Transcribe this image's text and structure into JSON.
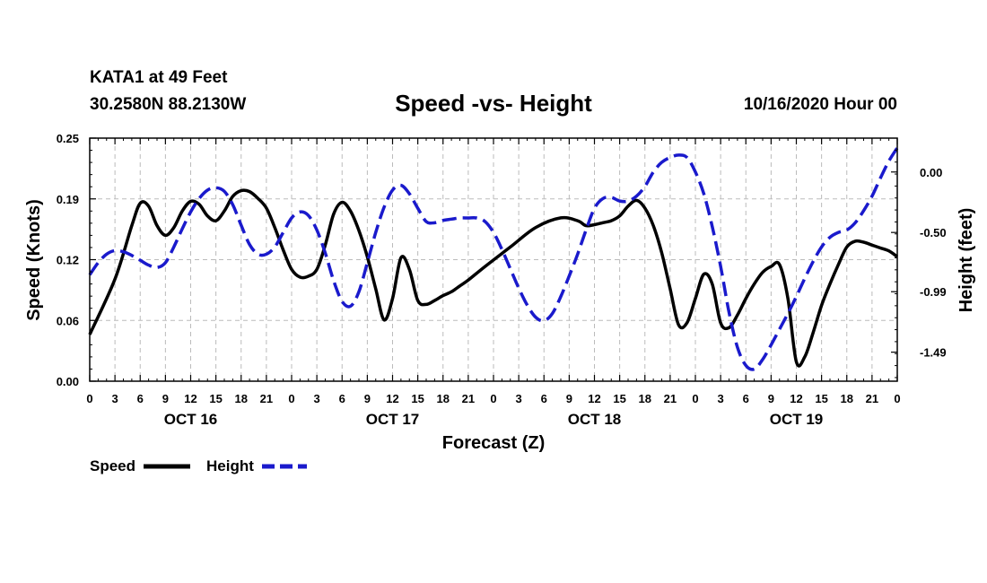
{
  "header": {
    "station": "KATA1 at 49 Feet",
    "coords": "30.2580N 88.2130W",
    "title": "Speed -vs- Height",
    "run_time": "10/16/2020 Hour 00"
  },
  "colors": {
    "speed": "#000000",
    "height": "#1a1acc",
    "grid": "#bbbbbb"
  },
  "chart_data": {
    "type": "line",
    "title": "Speed -vs- Height",
    "xlabel": "Forecast (Z)",
    "ylabel": "Speed (Knots)",
    "y2label": "Height (feet)",
    "xlim": [
      0,
      96
    ],
    "ylim": [
      0,
      0.25
    ],
    "y2lim": [
      -1.73,
      0.28
    ],
    "grid": true,
    "yticks": [
      "0.00",
      "0.06",
      "0.12",
      "0.19",
      "0.25"
    ],
    "y2ticks": [
      "0.00",
      "-0.50",
      "-0.99",
      "-1.49"
    ],
    "xtick_labels": [
      "0",
      "3",
      "6",
      "9",
      "12",
      "15",
      "18",
      "21",
      "0",
      "3",
      "6",
      "9",
      "12",
      "15",
      "18",
      "21",
      "0",
      "3",
      "6",
      "9",
      "12",
      "15",
      "18",
      "21",
      "0",
      "3",
      "6",
      "9",
      "12",
      "15",
      "18",
      "21",
      "0"
    ],
    "day_labels": [
      "OCT 16",
      "OCT 17",
      "OCT 18",
      "OCT 19"
    ],
    "legend": [
      "Speed",
      "Height"
    ],
    "series": [
      {
        "name": "Speed",
        "axis": "left",
        "style": "solid",
        "x": [
          0,
          3,
          5,
          6,
          7,
          8,
          9,
          10,
          11,
          12,
          13,
          14,
          15,
          16,
          17,
          18,
          19,
          20,
          21,
          22,
          23,
          24,
          25,
          26,
          27,
          28,
          29,
          30,
          31,
          32,
          33,
          34,
          35,
          36,
          37,
          38,
          39,
          40,
          41,
          42,
          43,
          44,
          45,
          47,
          50,
          53,
          56,
          58,
          59,
          60,
          61,
          62,
          63,
          64,
          65,
          66,
          67,
          68,
          69,
          70,
          71,
          72,
          73,
          74,
          75,
          76,
          77,
          78,
          79,
          80,
          81,
          82,
          83,
          84,
          85,
          86,
          87,
          88,
          89,
          90,
          91,
          92,
          93,
          94,
          95,
          96
        ],
        "y": [
          0.048,
          0.105,
          0.16,
          0.183,
          0.18,
          0.16,
          0.15,
          0.158,
          0.175,
          0.185,
          0.182,
          0.17,
          0.165,
          0.175,
          0.19,
          0.196,
          0.195,
          0.188,
          0.178,
          0.158,
          0.135,
          0.115,
          0.107,
          0.108,
          0.115,
          0.14,
          0.172,
          0.184,
          0.175,
          0.155,
          0.128,
          0.095,
          0.063,
          0.085,
          0.127,
          0.115,
          0.083,
          0.079,
          0.083,
          0.088,
          0.092,
          0.098,
          0.104,
          0.118,
          0.138,
          0.158,
          0.168,
          0.165,
          0.16,
          0.161,
          0.163,
          0.165,
          0.17,
          0.18,
          0.186,
          0.178,
          0.16,
          0.132,
          0.095,
          0.058,
          0.06,
          0.085,
          0.11,
          0.1,
          0.06,
          0.055,
          0.068,
          0.085,
          0.1,
          0.112,
          0.118,
          0.12,
          0.085,
          0.02,
          0.025,
          0.05,
          0.078,
          0.1,
          0.12,
          0.138,
          0.144,
          0.143,
          0.14,
          0.137,
          0.134,
          0.128
        ]
      },
      {
        "name": "Height",
        "axis": "right",
        "style": "dashed",
        "x": [
          0,
          1,
          2,
          3,
          4,
          5,
          6,
          7,
          8,
          9,
          10,
          11,
          12,
          13,
          14,
          15,
          16,
          17,
          18,
          19,
          20,
          21,
          22,
          23,
          24,
          25,
          26,
          27,
          28,
          29,
          30,
          31,
          32,
          33,
          34,
          35,
          36,
          37,
          38,
          39,
          40,
          41,
          42,
          43,
          44,
          45,
          46,
          47,
          48,
          49,
          50,
          51,
          52,
          53,
          54,
          55,
          56,
          57,
          58,
          59,
          60,
          61,
          62,
          63,
          64,
          65,
          66,
          67,
          68,
          69,
          70,
          71,
          72,
          73,
          74,
          75,
          76,
          77,
          78,
          79,
          80,
          81,
          82,
          83,
          84,
          85,
          86,
          87,
          88,
          89,
          90,
          91,
          92,
          93,
          94,
          95,
          96
        ],
        "y": [
          -0.85,
          -0.75,
          -0.68,
          -0.65,
          -0.66,
          -0.69,
          -0.73,
          -0.77,
          -0.79,
          -0.75,
          -0.62,
          -0.47,
          -0.33,
          -0.22,
          -0.15,
          -0.13,
          -0.16,
          -0.27,
          -0.44,
          -0.6,
          -0.68,
          -0.68,
          -0.62,
          -0.5,
          -0.38,
          -0.33,
          -0.36,
          -0.48,
          -0.67,
          -0.9,
          -1.07,
          -1.11,
          -0.99,
          -0.75,
          -0.5,
          -0.29,
          -0.15,
          -0.11,
          -0.18,
          -0.3,
          -0.41,
          -0.42,
          -0.4,
          -0.39,
          -0.38,
          -0.38,
          -0.38,
          -0.41,
          -0.5,
          -0.64,
          -0.8,
          -0.96,
          -1.1,
          -1.2,
          -1.23,
          -1.17,
          -1.03,
          -0.86,
          -0.68,
          -0.48,
          -0.3,
          -0.22,
          -0.21,
          -0.24,
          -0.24,
          -0.2,
          -0.12,
          0.0,
          0.08,
          0.12,
          0.14,
          0.12,
          0.0,
          -0.18,
          -0.45,
          -0.78,
          -1.16,
          -1.45,
          -1.6,
          -1.63,
          -1.55,
          -1.43,
          -1.3,
          -1.17,
          -1.03,
          -0.88,
          -0.74,
          -0.62,
          -0.54,
          -0.5,
          -0.48,
          -0.42,
          -0.32,
          -0.2,
          -0.05,
          0.09,
          0.2
        ]
      }
    ]
  }
}
